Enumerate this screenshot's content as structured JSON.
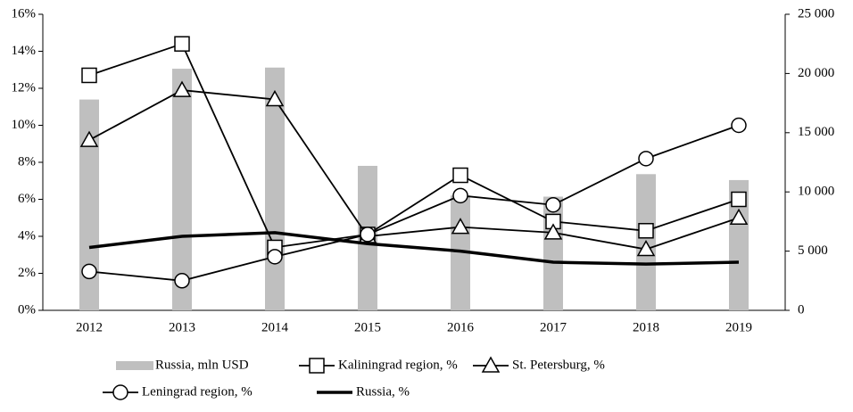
{
  "chart_data": {
    "type": "combo",
    "categories": [
      "2012",
      "2013",
      "2014",
      "2015",
      "2016",
      "2017",
      "2018",
      "2019"
    ],
    "series": [
      {
        "name": "Russia, mln USD",
        "type": "bar",
        "axis": "y2",
        "color": "#bfbfbf",
        "values": [
          17800,
          20400,
          20500,
          12200,
          9700,
          9600,
          11500,
          11000
        ]
      },
      {
        "name": "Kaliningrad region, %",
        "type": "line",
        "marker": "square",
        "color": "#000000",
        "values": [
          12.7,
          14.4,
          3.4,
          4.1,
          7.3,
          4.8,
          4.3,
          6.0
        ]
      },
      {
        "name": "St. Petersburg, %",
        "type": "line",
        "marker": "triangle",
        "color": "#000000",
        "values": [
          9.2,
          11.9,
          11.4,
          4.0,
          4.5,
          4.2,
          3.3,
          5.0
        ]
      },
      {
        "name": "Leningrad region, %",
        "type": "line",
        "marker": "circle",
        "color": "#000000",
        "values": [
          2.1,
          1.6,
          2.9,
          4.1,
          6.2,
          5.7,
          8.2,
          10.0
        ]
      },
      {
        "name": "Russia, %",
        "type": "line",
        "marker": "none",
        "color": "#000000",
        "values": [
          3.4,
          4.0,
          4.2,
          3.6,
          3.2,
          2.6,
          2.5,
          2.6
        ]
      }
    ],
    "ylim": [
      0,
      16
    ],
    "yticks": [
      {
        "value": 0,
        "label": "0%"
      },
      {
        "value": 2,
        "label": "2%"
      },
      {
        "value": 4,
        "label": "4%"
      },
      {
        "value": 6,
        "label": "6%"
      },
      {
        "value": 8,
        "label": "8%"
      },
      {
        "value": 10,
        "label": "10%"
      },
      {
        "value": 12,
        "label": "12%"
      },
      {
        "value": 14,
        "label": "14%"
      },
      {
        "value": 16,
        "label": "16%"
      }
    ],
    "y2lim": [
      0,
      25000
    ],
    "y2ticks": [
      0,
      {
        "value": 5000,
        "label": "5 000"
      },
      {
        "value": 10000,
        "label": "10 000"
      },
      {
        "value": 15000,
        "label": "15 000"
      },
      {
        "value": 20000,
        "label": "20 000"
      },
      {
        "value": 25000,
        "label": "25 000"
      }
    ],
    "legend": "bottom"
  }
}
